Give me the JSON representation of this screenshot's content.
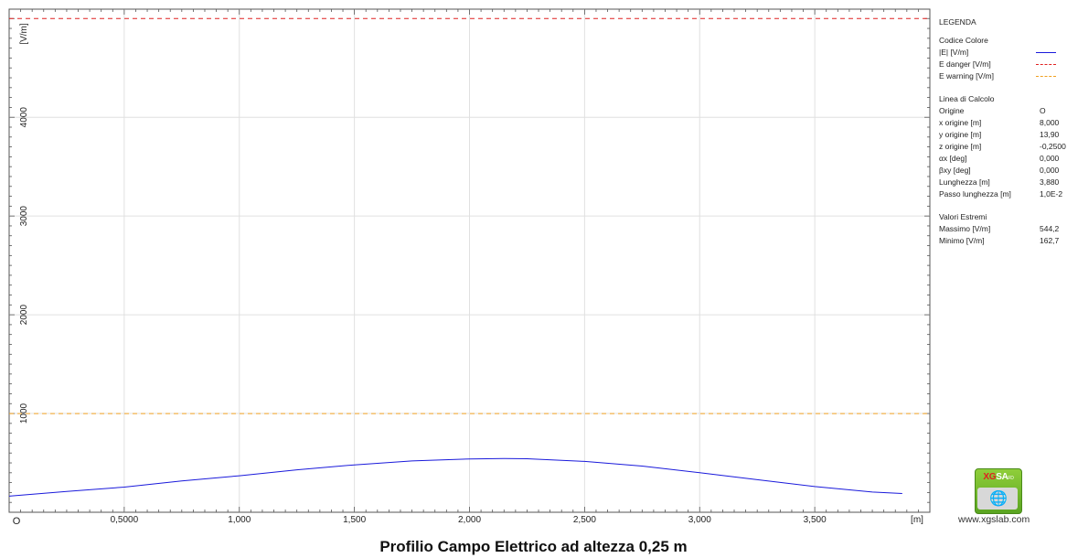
{
  "chart_data": {
    "type": "line",
    "title": "Profilio Campo Elettrico ad altezza 0,25 m",
    "xlabel": "[m]",
    "ylabel": "[V/m]",
    "origin_label": "O",
    "xlim": [
      0,
      4.0
    ],
    "ylim": [
      0,
      5000
    ],
    "x_ticks": [
      0.5,
      1.0,
      1.5,
      2.0,
      2.5,
      3.0,
      3.5
    ],
    "x_tick_labels": [
      "0,5000",
      "1,000",
      "1,500",
      "2,000",
      "2,500",
      "3,000",
      "3,500"
    ],
    "y_ticks": [
      1000,
      2000,
      3000,
      4000
    ],
    "y_tick_labels": [
      "1000",
      "2000",
      "3000",
      "4000"
    ],
    "grid": true,
    "series": [
      {
        "name": "|E| [V/m]",
        "color": "#1a1adb",
        "style": "solid",
        "x": [
          0,
          0.25,
          0.5,
          0.75,
          1.0,
          1.25,
          1.5,
          1.75,
          2.0,
          2.15,
          2.25,
          2.5,
          2.75,
          3.0,
          3.25,
          3.5,
          3.75,
          3.88
        ],
        "y": [
          163,
          210,
          255,
          318,
          370,
          430,
          480,
          520,
          540,
          544,
          542,
          515,
          468,
          400,
          330,
          260,
          205,
          190
        ]
      },
      {
        "name": "E danger [V/m]",
        "color": "#e02020",
        "style": "dashed",
        "x": [
          0,
          4.0
        ],
        "y": [
          5000,
          5000
        ]
      },
      {
        "name": "E warning [V/m]",
        "color": "#f0a020",
        "style": "dashed",
        "x": [
          0,
          4.0
        ],
        "y": [
          1000,
          1000
        ]
      }
    ]
  },
  "legend": {
    "title": "LEGENDA",
    "color_code_header": "Codice Colore",
    "entries": [
      "|E| [V/m]",
      "E danger [V/m]",
      "E warning [V/m]"
    ],
    "calc_line_header": "Linea di Calcolo",
    "calc_rows": [
      {
        "label": "Origine",
        "value": "O"
      },
      {
        "label": "x origine [m]",
        "value": "8,000"
      },
      {
        "label": "y origine [m]",
        "value": "13,90"
      },
      {
        "label": "z origine [m]",
        "value": "-0,2500"
      },
      {
        "label": "αx [deg]",
        "value": "0,000"
      },
      {
        "label": "βxy [deg]",
        "value": "0,000"
      },
      {
        "label": "Lunghezza [m]",
        "value": "3,880"
      },
      {
        "label": "Passo lunghezza [m]",
        "value": "1,0E-2"
      }
    ],
    "extremes_header": "Valori Estremi",
    "extreme_rows": [
      {
        "label": "Massimo [V/m]",
        "value": "544,2"
      },
      {
        "label": "Minimo [V/m]",
        "value": "162,7"
      }
    ]
  },
  "logo": {
    "brand_xg": "XG",
    "brand_sa": "SA",
    "brand_fd": "FD",
    "icon": "globe-icon"
  },
  "website": "www.xgslab.com",
  "caption": "Profilio Campo Elettrico ad altezza 0,25 m"
}
